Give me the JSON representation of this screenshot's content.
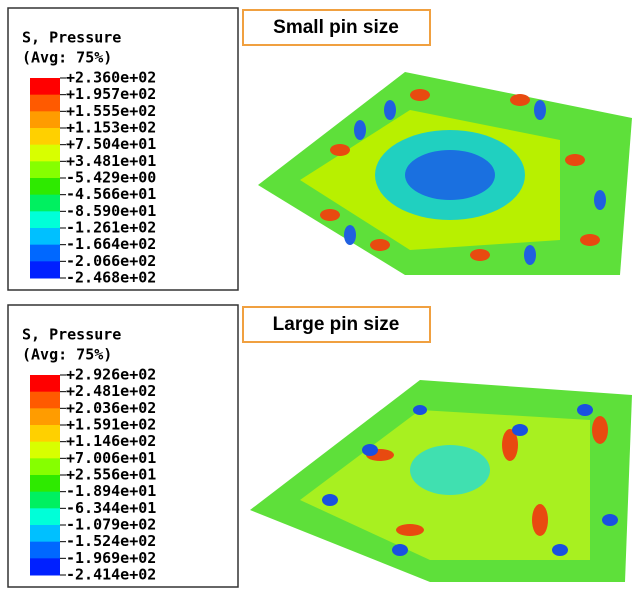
{
  "panels": [
    {
      "label": "Small pin size",
      "legend": {
        "title": "S, Pressure",
        "subtitle": "(Avg: 75%)",
        "values": [
          "+2.360e+02",
          "+1.957e+02",
          "+1.555e+02",
          "+1.153e+02",
          "+7.504e+01",
          "+3.481e+01",
          "-5.429e+00",
          "-4.566e+01",
          "-8.590e+01",
          "-1.261e+02",
          "-1.664e+02",
          "-2.066e+02",
          "-2.468e+02"
        ]
      }
    },
    {
      "label": "Large pin size",
      "legend": {
        "title": "S, Pressure",
        "subtitle": "(Avg: 75%)",
        "values": [
          "+2.926e+02",
          "+2.481e+02",
          "+2.036e+02",
          "+1.591e+02",
          "+1.146e+02",
          "+7.006e+01",
          "+2.556e+01",
          "-1.894e+01",
          "-6.344e+01",
          "-1.079e+02",
          "-1.524e+02",
          "-1.969e+02",
          "-2.414e+02"
        ]
      }
    }
  ]
}
